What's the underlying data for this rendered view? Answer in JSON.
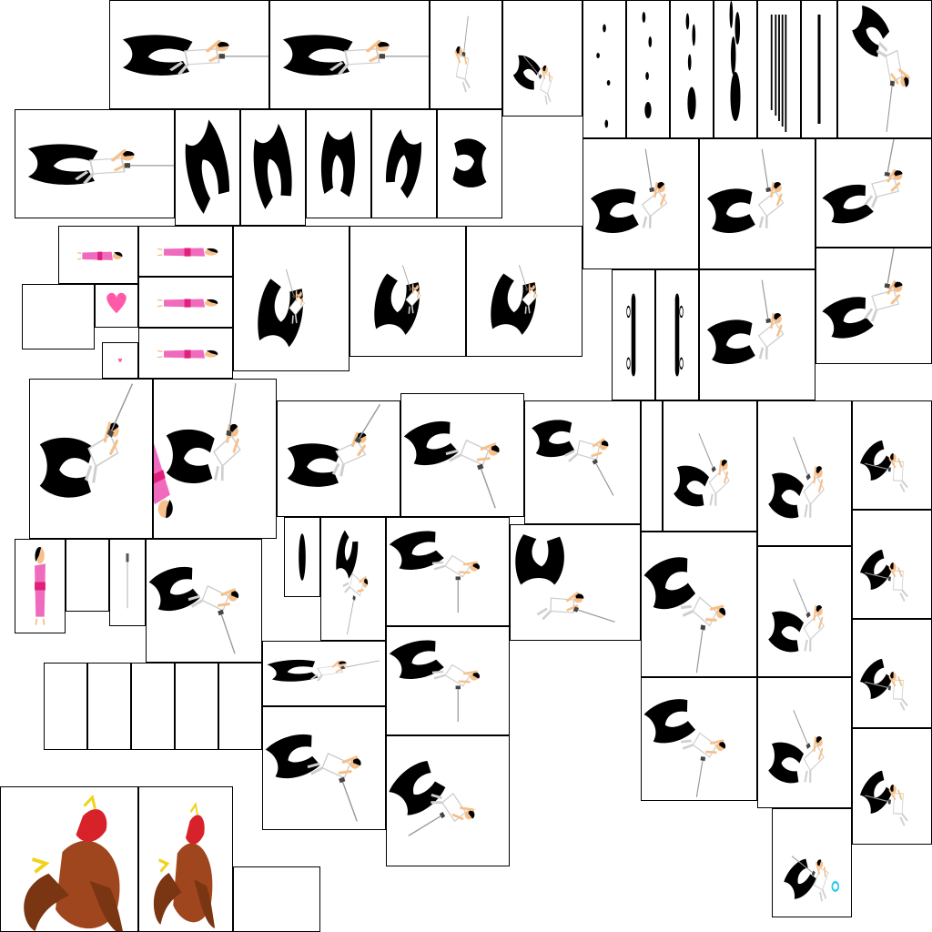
{
  "sheet": {
    "kind": "sprite-atlas",
    "background": "#ffffff",
    "frame_border": "#000000",
    "palette": {
      "cloak": "#000000",
      "gi": "#ffffff",
      "gi_shade": "#cfcfcf",
      "skin": "#f7c08a",
      "hair": "#000000",
      "blade": "#9a9a9a",
      "kimono_pink": "#f06bbd",
      "kimono_sash": "#e0207a",
      "heart": "#ff5aa8",
      "bird_red": "#d8222a",
      "bird_brown": "#a0461e",
      "bird_feather": "#7a3512",
      "bird_claw": "#f1d21c",
      "spark": "#28c8f0"
    },
    "sprite_groups": [
      {
        "name": "ninja-attack-frames",
        "icon": "ninja-icon"
      },
      {
        "name": "cloak-shape-frames",
        "icon": "cloak-icon"
      },
      {
        "name": "blood-drip-frames",
        "icon": "drip-icon"
      },
      {
        "name": "pink-girl-frames",
        "icon": "girl-icon"
      },
      {
        "name": "heart-pickup",
        "icon": "heart-icon"
      },
      {
        "name": "phoenix-frames",
        "icon": "phoenix-icon"
      },
      {
        "name": "empty-frames",
        "icon": "empty-icon"
      }
    ]
  }
}
